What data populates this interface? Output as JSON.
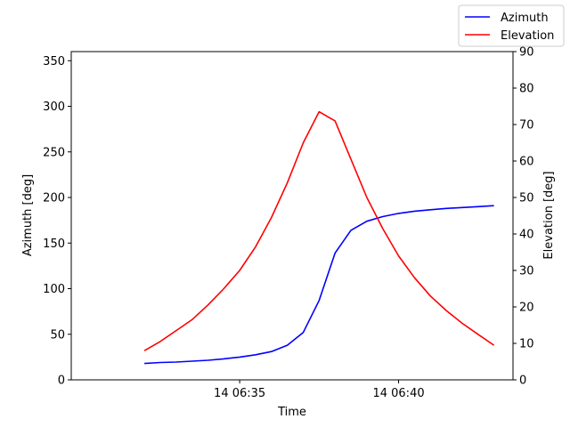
{
  "chart_data": {
    "type": "line",
    "xlabel": "Time",
    "ylabel_left": "Azimuth [deg]",
    "ylabel_right": "Elevation [deg]",
    "x_unit": "minutes after 14 06:30",
    "x_ticks": [
      {
        "label": "14 06:35",
        "value": 5
      },
      {
        "label": "14 06:40",
        "value": 10
      }
    ],
    "xlim": [
      -0.3,
      13.6
    ],
    "ylim_left": [
      0,
      360
    ],
    "ylim_right": [
      0,
      90
    ],
    "yticks_left": [
      0,
      50,
      100,
      150,
      200,
      250,
      300,
      350
    ],
    "yticks_right": [
      0,
      10,
      20,
      30,
      40,
      50,
      60,
      70,
      80,
      90
    ],
    "grid": false,
    "legend_position": "top-right",
    "x": [
      2.0,
      2.5,
      3.0,
      3.5,
      4.0,
      4.5,
      5.0,
      5.5,
      6.0,
      6.5,
      7.0,
      7.5,
      8.0,
      8.5,
      9.0,
      9.5,
      10.0,
      10.5,
      11.0,
      11.5,
      12.0,
      12.5,
      13.0
    ],
    "series": [
      {
        "name": "Azimuth",
        "axis": "left",
        "color": "#0000ff",
        "values": [
          18,
          19,
          19.5,
          20.5,
          21.5,
          23,
          25,
          27.5,
          31,
          38,
          52,
          87,
          139,
          164,
          174,
          179,
          182.5,
          185,
          186.5,
          188,
          189,
          190,
          191
        ]
      },
      {
        "name": "Elevation",
        "axis": "right",
        "color": "#ff0000",
        "values": [
          8,
          10.5,
          13.5,
          16.5,
          20.5,
          25,
          30,
          36.5,
          44.5,
          54,
          65,
          73.5,
          71,
          60.5,
          50,
          41.5,
          34,
          28,
          23,
          19,
          15.5,
          12.5,
          9.5
        ]
      }
    ]
  }
}
